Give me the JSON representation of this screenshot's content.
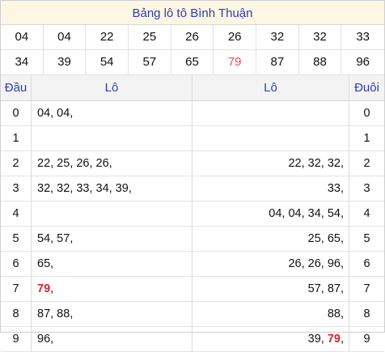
{
  "title": "Bảng lô tô Bình Thuận",
  "numbers": [
    {
      "v": "04",
      "red": false
    },
    {
      "v": "04",
      "red": false
    },
    {
      "v": "22",
      "red": false
    },
    {
      "v": "25",
      "red": false
    },
    {
      "v": "26",
      "red": false
    },
    {
      "v": "26",
      "red": false
    },
    {
      "v": "32",
      "red": false
    },
    {
      "v": "32",
      "red": false
    },
    {
      "v": "33",
      "red": false
    },
    {
      "v": "34",
      "red": false
    },
    {
      "v": "39",
      "red": false
    },
    {
      "v": "54",
      "red": false
    },
    {
      "v": "57",
      "red": false
    },
    {
      "v": "65",
      "red": false
    },
    {
      "v": "79",
      "red": true
    },
    {
      "v": "87",
      "red": false
    },
    {
      "v": "88",
      "red": false
    },
    {
      "v": "96",
      "red": false
    }
  ],
  "headers": {
    "dau": "Đầu",
    "lo_left": "Lô",
    "lo_right": "Lô",
    "duoi": "Đuôi"
  },
  "rows": [
    {
      "dau": "0",
      "left": [
        {
          "t": "04, 04,",
          "hl": false
        }
      ],
      "right": [],
      "duoi": "0"
    },
    {
      "dau": "1",
      "left": [],
      "right": [],
      "duoi": "1"
    },
    {
      "dau": "2",
      "left": [
        {
          "t": "22, 25, 26, 26,",
          "hl": false
        }
      ],
      "right": [
        {
          "t": "22, 32, 32,",
          "hl": false
        }
      ],
      "duoi": "2"
    },
    {
      "dau": "3",
      "left": [
        {
          "t": "32, 32, 33, 34, 39,",
          "hl": false
        }
      ],
      "right": [
        {
          "t": "33,",
          "hl": false
        }
      ],
      "duoi": "3"
    },
    {
      "dau": "4",
      "left": [],
      "right": [
        {
          "t": "04, 04, 34, 54,",
          "hl": false
        }
      ],
      "duoi": "4"
    },
    {
      "dau": "5",
      "left": [
        {
          "t": "54, 57,",
          "hl": false
        }
      ],
      "right": [
        {
          "t": "25, 65,",
          "hl": false
        }
      ],
      "duoi": "5"
    },
    {
      "dau": "6",
      "left": [
        {
          "t": "65,",
          "hl": false
        }
      ],
      "right": [
        {
          "t": "26, 26, 96,",
          "hl": false
        }
      ],
      "duoi": "6"
    },
    {
      "dau": "7",
      "left": [
        {
          "t": "79",
          "hl": true
        },
        {
          "t": ",",
          "hl": false
        }
      ],
      "right": [
        {
          "t": "57, 87,",
          "hl": false
        }
      ],
      "duoi": "7"
    },
    {
      "dau": "8",
      "left": [
        {
          "t": "87, 88,",
          "hl": false
        }
      ],
      "right": [
        {
          "t": "88,",
          "hl": false
        }
      ],
      "duoi": "8"
    },
    {
      "dau": "9",
      "left": [
        {
          "t": "96,",
          "hl": false
        }
      ],
      "right": [
        {
          "t": "39, ",
          "hl": false
        },
        {
          "t": "79",
          "hl": true
        },
        {
          "t": ",",
          "hl": false
        }
      ],
      "duoi": "9"
    }
  ]
}
